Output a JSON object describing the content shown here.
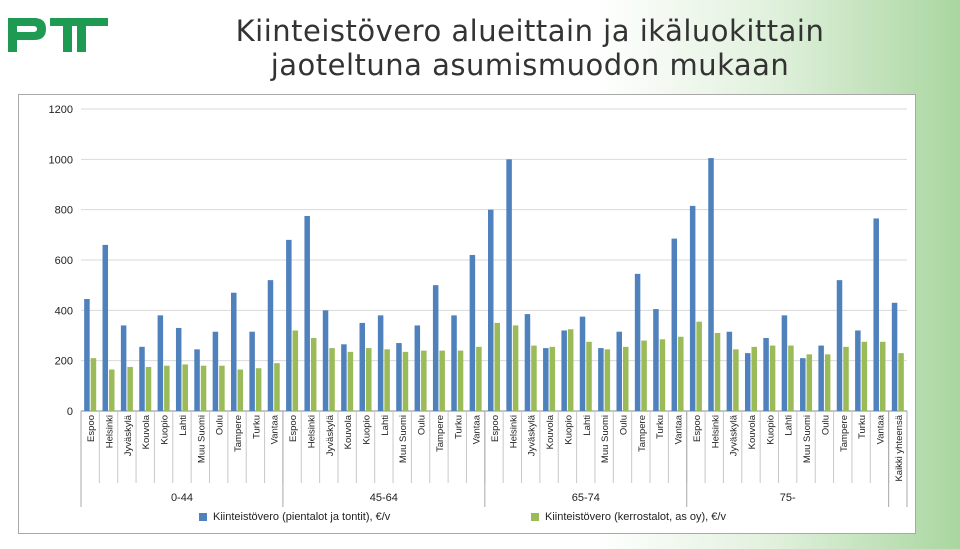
{
  "slide": {
    "logo_text": "PTT",
    "title_line1": "Kiinteistövero alueittain ja ikäluokittain",
    "title_line2": "jaoteltuna asumismuodon mukaan"
  },
  "colors": {
    "series1": "#4f81bd",
    "series2": "#9bbb59",
    "logo": "#1f9a53",
    "grid": "#d9d9d9"
  },
  "chart_data": {
    "type": "bar",
    "title": "",
    "xlabel": "",
    "ylabel": "",
    "ylim": [
      0,
      1200
    ],
    "yticks": [
      0,
      200,
      400,
      600,
      800,
      1000,
      1200
    ],
    "grid": true,
    "legend_position": "bottom",
    "groups": [
      {
        "label": "0-44",
        "categories": [
          "Espoo",
          "Helsinki",
          "Jyväskylä",
          "Kouvola",
          "Kuopio",
          "Lahti",
          "Muu Suomi",
          "Oulu",
          "Tampere",
          "Turku",
          "Vantaa"
        ]
      },
      {
        "label": "45-64",
        "categories": [
          "Espoo",
          "Helsinki",
          "Jyväskylä",
          "Kouvola",
          "Kuopio",
          "Lahti",
          "Muu Suomi",
          "Oulu",
          "Tampere",
          "Turku",
          "Vantaa"
        ]
      },
      {
        "label": "65-74",
        "categories": [
          "Espoo",
          "Helsinki",
          "Jyväskylä",
          "Kouvola",
          "Kuopio",
          "Lahti",
          "Muu Suomi",
          "Oulu",
          "Tampere",
          "Turku",
          "Vantaa"
        ]
      },
      {
        "label": "75-",
        "categories": [
          "Espoo",
          "Helsinki",
          "Jyväskylä",
          "Kouvola",
          "Kuopio",
          "Lahti",
          "Muu Suomi",
          "Oulu",
          "Tampere",
          "Turku",
          "Vantaa"
        ]
      },
      {
        "label": "",
        "categories": [
          "Kaikki yhteensä"
        ]
      }
    ],
    "series": [
      {
        "name": "Kiinteistövero (pientalot ja tontit), €/v",
        "values": [
          445,
          660,
          340,
          255,
          380,
          330,
          245,
          315,
          470,
          315,
          520,
          680,
          775,
          400,
          265,
          350,
          380,
          270,
          340,
          500,
          380,
          620,
          800,
          1000,
          385,
          250,
          320,
          375,
          250,
          315,
          545,
          405,
          685,
          815,
          1005,
          315,
          230,
          290,
          380,
          210,
          260,
          520,
          320,
          765,
          430
        ]
      },
      {
        "name": "Kiinteistövero (kerrostalot, as oy), €/v",
        "values": [
          210,
          165,
          175,
          175,
          180,
          185,
          180,
          180,
          165,
          170,
          190,
          320,
          290,
          250,
          235,
          250,
          245,
          235,
          240,
          240,
          240,
          255,
          350,
          340,
          260,
          255,
          325,
          275,
          245,
          255,
          280,
          285,
          295,
          355,
          310,
          245,
          255,
          260,
          260,
          225,
          225,
          255,
          275,
          275,
          230
        ]
      }
    ]
  }
}
